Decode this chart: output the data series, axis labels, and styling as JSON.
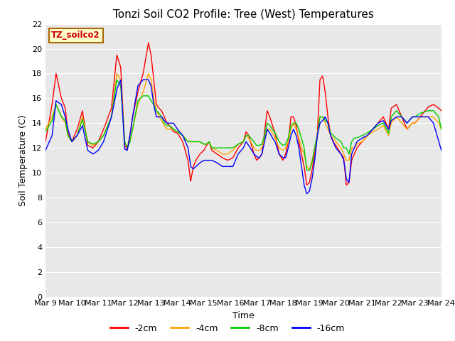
{
  "title": "Tonzi Soil CO2 Profile: Tree (West) Temperatures",
  "xlabel": "Time",
  "ylabel": "Soil Temperature (C)",
  "ylim": [
    0,
    22
  ],
  "yticks": [
    0,
    2,
    4,
    6,
    8,
    10,
    12,
    14,
    16,
    18,
    20,
    22
  ],
  "xtick_labels": [
    "Mar 9",
    "Mar 10",
    "Mar 11",
    "Mar 12",
    "Mar 13",
    "Mar 14",
    "Mar 15",
    "Mar 16",
    "Mar 17",
    "Mar 18",
    "Mar 19",
    "Mar 20",
    "Mar 21",
    "Mar 22",
    "Mar 23",
    "Mar 24"
  ],
  "legend_label": "TZ_soilco2",
  "series_labels": [
    "-2cm",
    "-4cm",
    "-8cm",
    "-16cm"
  ],
  "series_colors": [
    "#ff0000",
    "#ffa500",
    "#00cc00",
    "#0000ff"
  ],
  "plot_bg_color": "#e8e8e8",
  "fig_bg_color": "#ffffff",
  "title_fontsize": 11,
  "axis_fontsize": 9,
  "tick_fontsize": 8,
  "grid_color": "#ffffff",
  "linewidth": 1.0
}
